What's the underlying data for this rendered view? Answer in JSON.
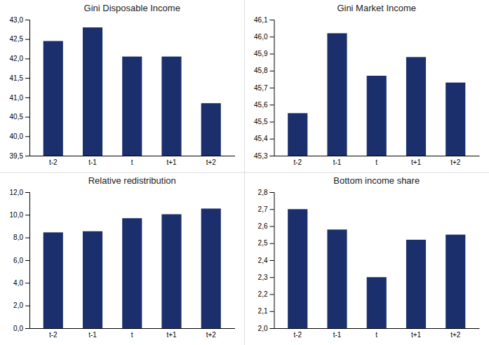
{
  "chart_data": [
    {
      "type": "bar",
      "title": "Gini Disposable Income",
      "categories": [
        "t-2",
        "t-1",
        "t",
        "t+1",
        "t+2"
      ],
      "values": [
        42.45,
        42.8,
        42.05,
        42.05,
        40.85
      ],
      "color": "#1a2f6b",
      "ylim": [
        39.5,
        43.0
      ],
      "yticks": [
        {
          "value": 39.5,
          "label": "39,5"
        },
        {
          "value": 40.0,
          "label": "40,0"
        },
        {
          "value": 40.5,
          "label": "40,5"
        },
        {
          "value": 41.0,
          "label": "41,0"
        },
        {
          "value": 41.5,
          "label": "41,5"
        },
        {
          "value": 42.0,
          "label": "42,0"
        },
        {
          "value": 42.5,
          "label": "42,5"
        },
        {
          "value": 43.0,
          "label": "43,0"
        }
      ],
      "grid": false
    },
    {
      "type": "bar",
      "title": "Gini Market Income",
      "categories": [
        "t-2",
        "t-1",
        "t",
        "t+1",
        "t+2"
      ],
      "values": [
        45.55,
        46.02,
        45.77,
        45.88,
        45.73
      ],
      "color": "#1a2f6b",
      "ylim": [
        45.3,
        46.1
      ],
      "yticks": [
        {
          "value": 45.3,
          "label": "45,3"
        },
        {
          "value": 45.4,
          "label": "45,4"
        },
        {
          "value": 45.5,
          "label": "45,5"
        },
        {
          "value": 45.6,
          "label": "45,6"
        },
        {
          "value": 45.7,
          "label": "45,7"
        },
        {
          "value": 45.8,
          "label": "45,8"
        },
        {
          "value": 45.9,
          "label": "45,9"
        },
        {
          "value": 46.0,
          "label": "46,0"
        },
        {
          "value": 46.1,
          "label": "46,1"
        }
      ],
      "grid": false
    },
    {
      "type": "bar",
      "title": "Relative redistribution",
      "categories": [
        "t-2",
        "t-1",
        "t",
        "t+1",
        "t+2"
      ],
      "values": [
        8.45,
        8.55,
        9.7,
        10.05,
        10.55
      ],
      "color": "#1a2f6b",
      "ylim": [
        0.0,
        12.0
      ],
      "yticks": [
        {
          "value": 0.0,
          "label": "0,0"
        },
        {
          "value": 2.0,
          "label": "2,0"
        },
        {
          "value": 4.0,
          "label": "4,0"
        },
        {
          "value": 6.0,
          "label": "6,0"
        },
        {
          "value": 8.0,
          "label": "8,0"
        },
        {
          "value": 10.0,
          "label": "10,0"
        },
        {
          "value": 12.0,
          "label": "12,0"
        }
      ],
      "grid": false
    },
    {
      "type": "bar",
      "title": "Bottom income share",
      "categories": [
        "t-2",
        "t-1",
        "t",
        "t+1",
        "t+2"
      ],
      "values": [
        2.7,
        2.58,
        2.3,
        2.52,
        2.55
      ],
      "color": "#1a2f6b",
      "ylim": [
        2.0,
        2.8
      ],
      "yticks": [
        {
          "value": 2.0,
          "label": "2,0"
        },
        {
          "value": 2.1,
          "label": "2,1"
        },
        {
          "value": 2.2,
          "label": "2,2"
        },
        {
          "value": 2.3,
          "label": "2,3"
        },
        {
          "value": 2.4,
          "label": "2,4"
        },
        {
          "value": 2.5,
          "label": "2,5"
        },
        {
          "value": 2.6,
          "label": "2,6"
        },
        {
          "value": 2.7,
          "label": "2,7"
        },
        {
          "value": 2.8,
          "label": "2,8"
        }
      ],
      "grid": false
    }
  ]
}
